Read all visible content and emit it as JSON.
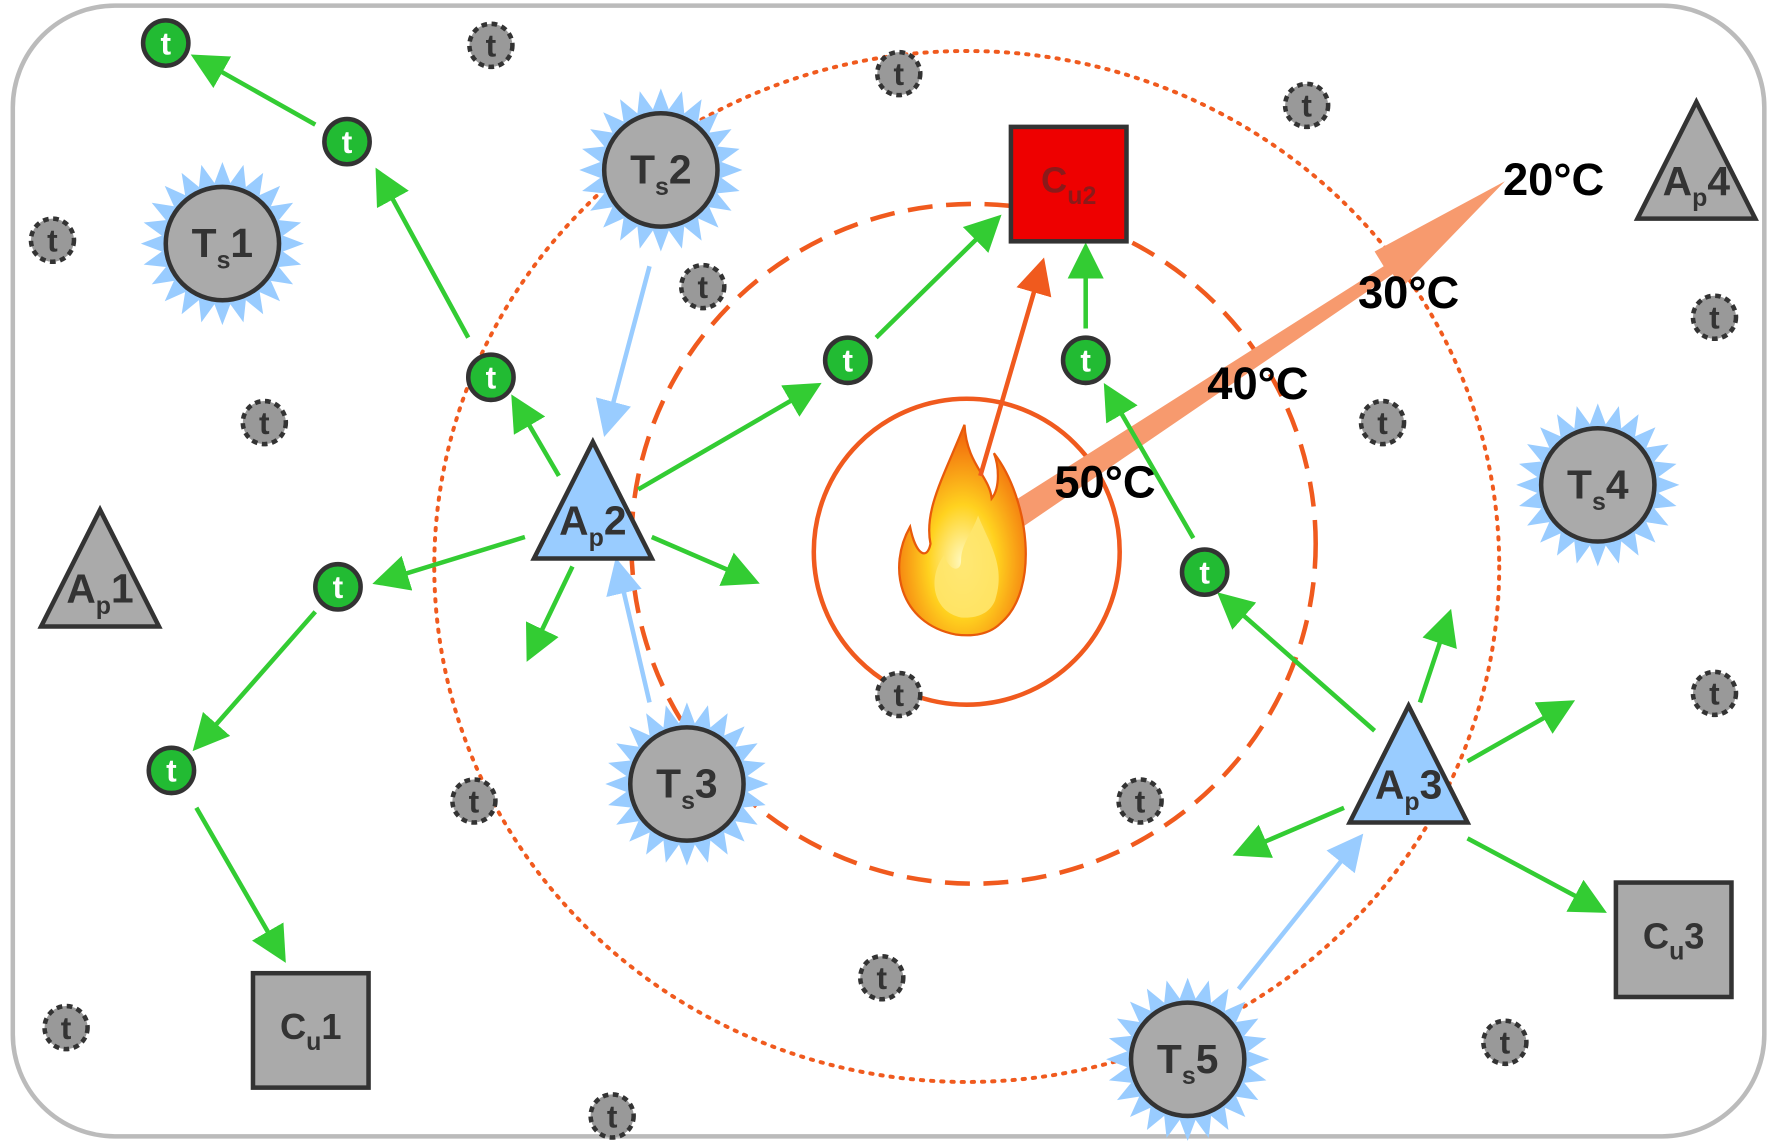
{
  "nodes": [
    {
      "base": "T",
      "sub": "s",
      "suffix": "1"
    },
    {
      "base": "T",
      "sub": "s",
      "suffix": "2"
    },
    {
      "base": "T",
      "sub": "s",
      "suffix": "3"
    },
    {
      "base": "T",
      "sub": "s",
      "suffix": "4"
    },
    {
      "base": "T",
      "sub": "s",
      "suffix": "5"
    },
    {
      "base": "A",
      "sub": "p",
      "suffix": "1"
    },
    {
      "base": "A",
      "sub": "p",
      "suffix": "2"
    },
    {
      "base": "A",
      "sub": "p",
      "suffix": "3"
    },
    {
      "base": "A",
      "sub": "p",
      "suffix": "4"
    },
    {
      "base": "C",
      "sub": "u",
      "suffix": "1"
    },
    {
      "base": "C",
      "sub": "u2"
    },
    {
      "base": "C",
      "sub": "u",
      "suffix": "3"
    }
  ],
  "temperatures": [
    "50°C",
    "40°C",
    "30°C",
    "20°C"
  ],
  "token_label": "t"
}
